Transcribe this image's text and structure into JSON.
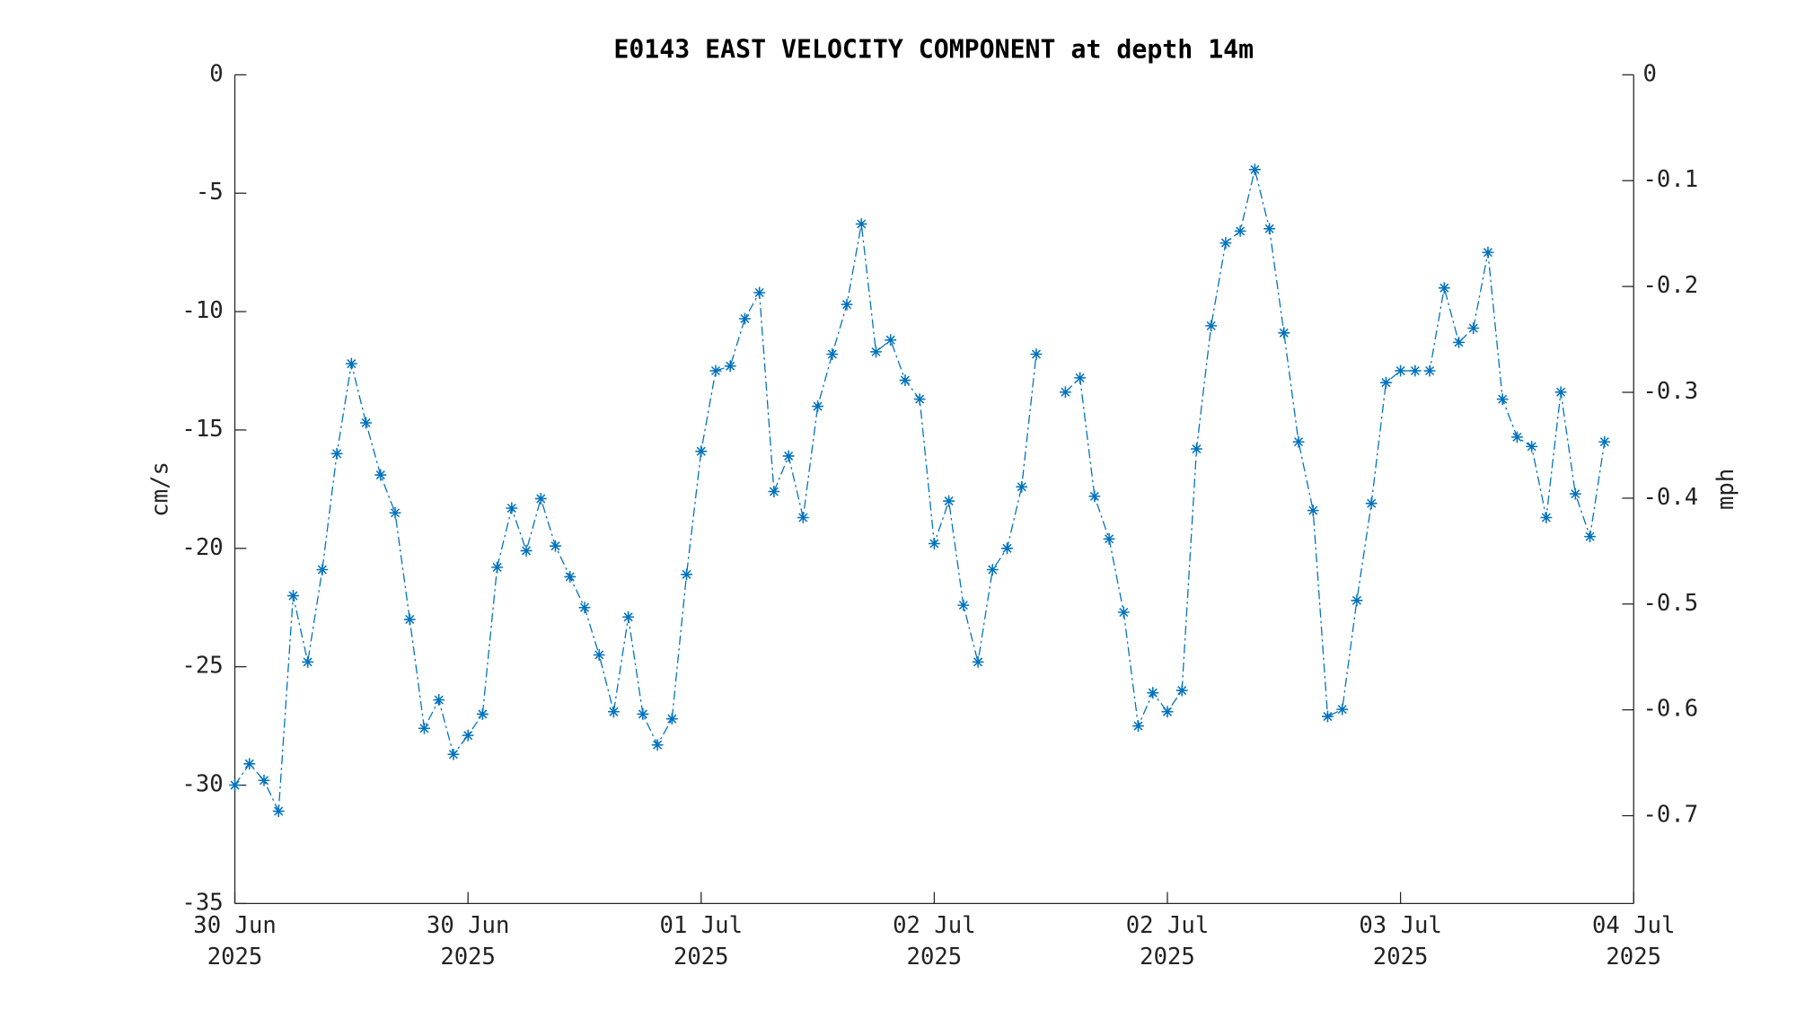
{
  "chart_data": {
    "type": "line",
    "title": "E0143 EAST VELOCITY COMPONENT at depth 14m",
    "ylabel": "cm/s",
    "y2label": "mph",
    "x": [
      "2025-06-30T00:00",
      "2025-06-30T01:00",
      "2025-06-30T02:00",
      "2025-06-30T03:00",
      "2025-06-30T04:00",
      "2025-06-30T05:00",
      "2025-06-30T06:00",
      "2025-06-30T07:00",
      "2025-06-30T08:00",
      "2025-06-30T09:00",
      "2025-06-30T10:00",
      "2025-06-30T11:00",
      "2025-06-30T12:00",
      "2025-06-30T13:00",
      "2025-06-30T14:00",
      "2025-06-30T15:00",
      "2025-06-30T16:00",
      "2025-06-30T17:00",
      "2025-06-30T18:00",
      "2025-06-30T19:00",
      "2025-06-30T20:00",
      "2025-06-30T21:00",
      "2025-06-30T22:00",
      "2025-06-30T23:00",
      "2025-07-01T00:00",
      "2025-07-01T01:00",
      "2025-07-01T02:00",
      "2025-07-01T03:00",
      "2025-07-01T04:00",
      "2025-07-01T05:00",
      "2025-07-01T06:00",
      "2025-07-01T07:00",
      "2025-07-01T08:00",
      "2025-07-01T09:00",
      "2025-07-01T10:00",
      "2025-07-01T11:00",
      "2025-07-01T12:00",
      "2025-07-01T13:00",
      "2025-07-01T14:00",
      "2025-07-01T15:00",
      "2025-07-01T16:00",
      "2025-07-01T17:00",
      "2025-07-01T18:00",
      "2025-07-01T19:00",
      "2025-07-01T20:00",
      "2025-07-01T21:00",
      "2025-07-01T22:00",
      "2025-07-01T23:00",
      "2025-07-02T00:00",
      "2025-07-02T01:00",
      "2025-07-02T02:00",
      "2025-07-02T03:00",
      "2025-07-02T04:00",
      "2025-07-02T05:00",
      "2025-07-02T06:00",
      "2025-07-02T07:00",
      "2025-07-02T08:00",
      "2025-07-02T09:00",
      "2025-07-02T10:00",
      "2025-07-02T11:00",
      "2025-07-02T12:00",
      "2025-07-02T13:00",
      "2025-07-02T14:00",
      "2025-07-02T15:00",
      "2025-07-02T16:00",
      "2025-07-02T17:00",
      "2025-07-02T18:00",
      "2025-07-02T19:00",
      "2025-07-02T20:00",
      "2025-07-02T21:00",
      "2025-07-02T22:00",
      "2025-07-02T23:00",
      "2025-07-03T00:00",
      "2025-07-03T01:00",
      "2025-07-03T02:00",
      "2025-07-03T03:00",
      "2025-07-03T04:00",
      "2025-07-03T05:00",
      "2025-07-03T06:00",
      "2025-07-03T07:00",
      "2025-07-03T08:00",
      "2025-07-03T09:00",
      "2025-07-03T10:00",
      "2025-07-03T11:00",
      "2025-07-03T12:00",
      "2025-07-03T13:00",
      "2025-07-03T14:00",
      "2025-07-03T15:00",
      "2025-07-03T16:00",
      "2025-07-03T17:00",
      "2025-07-03T18:00",
      "2025-07-03T19:00",
      "2025-07-03T20:00",
      "2025-07-03T21:00",
      "2025-07-03T22:00"
    ],
    "series": [
      {
        "color": "#0072bd",
        "line_style": "dashdot",
        "marker": "*",
        "values": [
          -30.0,
          -29.1,
          -29.8,
          -31.1,
          -22.0,
          -24.8,
          -20.9,
          -16.0,
          -12.2,
          -14.7,
          -16.9,
          -18.5,
          -23.0,
          -27.6,
          -26.4,
          -28.7,
          -27.9,
          -27.0,
          -20.8,
          -18.3,
          -20.1,
          -17.9,
          -19.9,
          -21.2,
          -22.5,
          -24.5,
          -26.9,
          -22.9,
          -27.0,
          -28.3,
          -27.2,
          -21.1,
          -15.9,
          -12.5,
          -12.3,
          -10.3,
          -9.2,
          -17.6,
          -16.1,
          -18.7,
          -14.0,
          -11.8,
          -9.7,
          -6.3,
          -11.7,
          -11.2,
          -12.9,
          -13.7,
          -19.8,
          -18.0,
          -22.4,
          -24.8,
          -20.9,
          -20.0,
          -17.4,
          -11.8,
          null,
          -13.4,
          -12.8,
          -17.8,
          -19.6,
          -22.7,
          -27.5,
          -26.1,
          -26.9,
          -26.0,
          -15.8,
          -10.6,
          -7.1,
          -6.6,
          -4.0,
          -6.5,
          -10.9,
          -15.5,
          -18.4,
          -27.1,
          -26.8,
          -22.2,
          -18.1,
          -13.0,
          -12.5,
          -12.5,
          -12.5,
          -9.0,
          -11.3,
          -10.7,
          -7.5,
          -13.7,
          -15.3,
          -15.7,
          -18.7,
          -13.4,
          -17.7,
          -19.5,
          -15.5
        ]
      }
    ],
    "xlim": [
      "2025-06-30T00:00",
      "2025-07-04T00:00"
    ],
    "xticks": [
      {
        "value": "2025-06-30T00:00",
        "label": "30 Jun\n2025"
      },
      {
        "value": "2025-06-30T16:00",
        "label": "30 Jun\n2025"
      },
      {
        "value": "2025-07-01T08:00",
        "label": "01 Jul\n2025"
      },
      {
        "value": "2025-07-02T00:00",
        "label": "02 Jul\n2025"
      },
      {
        "value": "2025-07-02T16:00",
        "label": "02 Jul\n2025"
      },
      {
        "value": "2025-07-03T08:00",
        "label": "03 Jul\n2025"
      },
      {
        "value": "2025-07-04T00:00",
        "label": "04 Jul\n2025"
      }
    ],
    "ylim": [
      -35,
      0
    ],
    "yticks": [
      -35,
      -30,
      -25,
      -20,
      -15,
      -10,
      -5,
      0
    ],
    "y2lim": [
      -0.783,
      0
    ],
    "y2ticks": [
      -0.7,
      -0.6,
      -0.5,
      -0.4,
      -0.3,
      -0.2,
      -0.1,
      0
    ],
    "grid": false
  }
}
